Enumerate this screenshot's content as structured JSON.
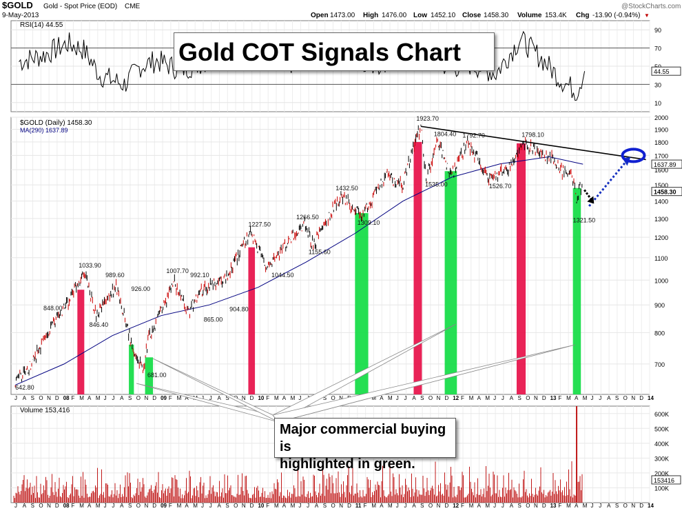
{
  "header": {
    "symbol": "$GOLD",
    "name": "Gold - Spot Price (EOD)",
    "exchange": "CME",
    "date": "9-May-2013",
    "open_label": "Open",
    "open": "1473.00",
    "high_label": "High",
    "high": "1476.00",
    "low_label": "Low",
    "low": "1452.10",
    "close_label": "Close",
    "close": "1458.30",
    "volume_label": "Volume",
    "volume": "153.4K",
    "chg_label": "Chg",
    "chg": "-13.90 (-0.94%)",
    "watermark": "@StockCharts.com"
  },
  "title": "Gold COT Signals Chart",
  "annotation": "Major commercial buying is\nhighlighted in green.",
  "colors": {
    "price": "#000000",
    "up_bar": "#000000",
    "down_bar": "#cc0000",
    "ma": "#000080",
    "rsi": "#000000",
    "volume": "#c01818",
    "sell_signal": "#e8174e",
    "buy_signal": "#19dd4a",
    "projection": "#1530c0",
    "target_ring": "#1020d0"
  },
  "chart_data": [
    {
      "type": "line",
      "panel": "rsi",
      "title": "RSI(14) 44.55",
      "label": "RSI(14)",
      "last_value": "44.55",
      "ylim": [
        0,
        100
      ],
      "yticks": [
        "90",
        "70",
        "50",
        "30",
        "10"
      ],
      "reference_lines": [
        70,
        30
      ],
      "last_badge": "44.55",
      "x": [
        "2007-07",
        "2007-10",
        "2008-01",
        "2008-03",
        "2008-05",
        "2008-08",
        "2008-10",
        "2008-12",
        "2009-03",
        "2009-06",
        "2009-09",
        "2009-12",
        "2010-03",
        "2010-06",
        "2010-09",
        "2010-12",
        "2011-03",
        "2011-06",
        "2011-09",
        "2011-12",
        "2012-03",
        "2012-06",
        "2012-09",
        "2012-12",
        "2013-02",
        "2013-04",
        "2013-05"
      ],
      "values": [
        55,
        62,
        75,
        68,
        40,
        30,
        50,
        56,
        46,
        55,
        66,
        60,
        48,
        58,
        66,
        62,
        52,
        60,
        75,
        48,
        52,
        42,
        80,
        55,
        35,
        22,
        44.55
      ]
    },
    {
      "type": "line",
      "panel": "price",
      "title": "$GOLD (Daily) 1458.30",
      "series_labels": [
        "$GOLD (Daily) 1458.30",
        "MA(290) 1637.89"
      ],
      "scale": "log",
      "ylim": [
        615,
        2000
      ],
      "yticks": [
        "2000",
        "1900",
        "1800",
        "1700",
        "1600",
        "1500",
        "1400",
        "1300",
        "1200",
        "1100",
        "1000",
        "900",
        "800",
        "700"
      ],
      "last_badges": [
        "1637.89",
        "1458.30"
      ],
      "series": [
        {
          "name": "$GOLD (Daily)",
          "x": [
            "2007-07-01",
            "2007-08-15",
            "2007-10-01",
            "2007-11-15",
            "2008-01-10",
            "2008-03-17",
            "2008-05-01",
            "2008-07-15",
            "2008-09-10",
            "2008-10-24",
            "2008-11-15",
            "2009-02-20",
            "2009-04-15",
            "2009-06-01",
            "2009-09-01",
            "2009-12-03",
            "2010-02-05",
            "2010-04-15",
            "2010-06-25",
            "2010-07-28",
            "2010-09-15",
            "2010-11-09",
            "2011-01-28",
            "2011-04-29",
            "2011-07-01",
            "2011-08-15",
            "2011-09-06",
            "2011-09-26",
            "2011-11-08",
            "2011-12-29",
            "2012-02-29",
            "2012-04-15",
            "2012-05-16",
            "2012-08-01",
            "2012-10-04",
            "2012-12-01",
            "2013-01-15",
            "2013-02-20",
            "2013-03-25",
            "2013-04-15",
            "2013-04-24",
            "2013-05-09"
          ],
          "values": [
            650,
            680,
            750,
            820,
            900,
            1033.9,
            860,
            975,
            760,
            681,
            780,
            989.6,
            870,
            960,
            1000,
            1227.5,
            1044.5,
            1160,
            1266.5,
            1155.6,
            1280,
            1432.5,
            1309.1,
            1560,
            1500,
            1800,
            1923.7,
            1535,
            1804.4,
            1550,
            1792.7,
            1640,
            1526.7,
            1610,
            1798.1,
            1700,
            1680,
            1580,
            1600,
            1400,
            1480,
            1458.3
          ]
        },
        {
          "name": "MA(290)",
          "x": [
            "2007-07-01",
            "2008-01-01",
            "2008-07-01",
            "2009-01-01",
            "2009-07-01",
            "2010-01-01",
            "2010-07-01",
            "2011-01-01",
            "2011-07-01",
            "2012-01-01",
            "2012-07-01",
            "2013-01-01",
            "2013-05-09"
          ],
          "values": [
            640,
            700,
            790,
            860,
            900,
            970,
            1080,
            1220,
            1400,
            1550,
            1640,
            1690,
            1637.89
          ]
        }
      ],
      "point_labels": [
        "642.80",
        "848.00",
        "1033.90",
        "846.40",
        "989.60",
        "926.00",
        "681.00",
        "1007.70",
        "992.10",
        "865.00",
        "904.80",
        "1227.50",
        "1044.50",
        "1266.50",
        "1155.60",
        "1432.50",
        "1309.10",
        "1923.70",
        "1804.40",
        "1535.00",
        "1792.70",
        "1526.70",
        "1798.10",
        "1321.50"
      ],
      "signal_bars": [
        {
          "label": "sell",
          "start": "2008-02-20",
          "end": "2008-03-17",
          "from": 615,
          "to": 960
        },
        {
          "label": "buy",
          "start": "2008-09-01",
          "end": "2008-09-20",
          "from": 615,
          "to": 760
        },
        {
          "label": "buy",
          "start": "2008-11-01",
          "end": "2008-12-01",
          "from": 615,
          "to": 720
        },
        {
          "label": "sell",
          "start": "2009-11-25",
          "end": "2009-12-20",
          "from": 615,
          "to": 1150
        },
        {
          "label": "buy",
          "start": "2011-01-01",
          "end": "2011-02-20",
          "from": 615,
          "to": 1330
        },
        {
          "label": "sell",
          "start": "2011-08-10",
          "end": "2011-09-10",
          "from": 615,
          "to": 1800
        },
        {
          "label": "buy",
          "start": "2011-12-05",
          "end": "2012-01-20",
          "from": 615,
          "to": 1590
        },
        {
          "label": "sell",
          "start": "2012-09-01",
          "end": "2012-10-05",
          "from": 615,
          "to": 1790
        },
        {
          "label": "buy",
          "start": "2013-04-01",
          "end": "2013-05-01",
          "from": 615,
          "to": 1480
        }
      ],
      "resistance_line": {
        "x": [
          "2011-09-06",
          "2014-01-01"
        ],
        "values": [
          1923.7,
          1670
        ]
      },
      "projection": {
        "x": [
          "2013-06-01",
          "2013-10-20"
        ],
        "values": [
          1370,
          1660
        ]
      },
      "target_ring": {
        "x": "2013-11-15",
        "value": 1700
      }
    },
    {
      "type": "bar",
      "panel": "volume",
      "title": "Volume 153,416",
      "label": "Volume",
      "last_value": "153,416",
      "ylim": [
        0,
        650000
      ],
      "yticks": [
        "600K",
        "500K",
        "400K",
        "300K",
        "200K",
        "100K"
      ],
      "last_badge": "153416",
      "x": [
        "2011-03",
        "2011-09",
        "2012-01",
        "2013-04-15",
        "2013-05-09"
      ],
      "values": [
        230000,
        260000,
        210000,
        650000,
        153416
      ]
    }
  ],
  "axis": {
    "months": [
      "J",
      "A",
      "S",
      "O",
      "N",
      "D",
      "J",
      "F",
      "M",
      "A",
      "M",
      "J",
      "J",
      "A",
      "S",
      "O",
      "N",
      "D",
      "J",
      "F",
      "M",
      "A",
      "M",
      "J",
      "J",
      "A",
      "S",
      "O",
      "N",
      "D",
      "J",
      "F",
      "M",
      "A",
      "M",
      "J",
      "J",
      "A",
      "S",
      "O",
      "N",
      "D",
      "J",
      "F",
      "M",
      "A",
      "M",
      "J",
      "J",
      "A",
      "S",
      "O",
      "N",
      "D",
      "J",
      "F",
      "M",
      "A",
      "M",
      "J",
      "J",
      "A",
      "S",
      "O",
      "N",
      "D",
      "J",
      "F",
      "M",
      "A",
      "M",
      "J",
      "J",
      "A",
      "S",
      "O",
      "N",
      "D",
      "J"
    ],
    "year_labels": {
      "6": "08",
      "18": "09",
      "30": "10",
      "42": "11",
      "54": "12",
      "66": "13",
      "78": "14"
    }
  }
}
